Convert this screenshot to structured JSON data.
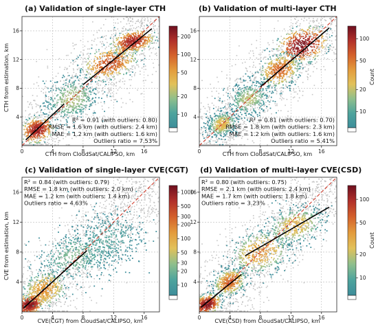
{
  "chart_data": [
    {
      "type": "heatmap",
      "title": "(a) Validation of single-layer CTH",
      "xlabel": "CTH from CloudSat/CALIPSO, km",
      "ylabel": "CTH from estimation, km",
      "xlim": [
        0,
        18
      ],
      "ylim": [
        0,
        18
      ],
      "x_ticks": [
        0,
        4,
        8,
        12,
        16
      ],
      "y_ticks": [
        4,
        8,
        12,
        16
      ],
      "grid": true,
      "stats_position": "bottom-right",
      "stats": [
        "R² = 0.91 (with outliers: 0.80)",
        "RMSE = 1.6 km (with outliers: 2.4 km)",
        "MAE = 1.2 km (with outliers: 1.6 km)",
        "Outliers ratio = 7.53%"
      ],
      "colorbar": {
        "ticks": [
          10,
          20,
          50,
          100,
          200
        ],
        "label": "",
        "min": 6,
        "max": 300
      },
      "one_to_one_line": true,
      "fit_segments": [
        {
          "x": [
            0.5,
            5.5
          ],
          "y": [
            0.8,
            5.8
          ]
        },
        {
          "x": [
            8,
            17
          ],
          "y": [
            8.5,
            16.3
          ]
        }
      ],
      "density_clusters": [
        {
          "x": 2.0,
          "y": 2.2,
          "sx": 0.9,
          "sy": 0.9,
          "peak": 220
        },
        {
          "x": 11.5,
          "y": 11.5,
          "sx": 1.6,
          "sy": 1.2,
          "peak": 120
        },
        {
          "x": 14.5,
          "y": 14.5,
          "sx": 1.2,
          "sy": 0.8,
          "peak": 200
        },
        {
          "x": 6.5,
          "y": 6.5,
          "sx": 1.8,
          "sy": 1.8,
          "peak": 25
        }
      ]
    },
    {
      "type": "heatmap",
      "title": "(b) Validation of multi-layer CTH",
      "xlabel": "CTH from CloudSat/CALIPSO, km",
      "ylabel": "",
      "xlim": [
        0,
        18
      ],
      "ylim": [
        0,
        18
      ],
      "x_ticks": [
        0,
        4,
        8,
        12,
        16
      ],
      "y_ticks": [
        4,
        8,
        12,
        16
      ],
      "grid": true,
      "stats_position": "bottom-right",
      "stats": [
        "R² = 0.81 (with outliers: 0.70)",
        "RMSE = 1.8 km (with outliers: 2.3 km)",
        "MAE = 1.2 km (with outliers: 1.6 km)",
        "Outliers ratio = 5.41%"
      ],
      "colorbar": {
        "ticks": [
          10,
          20,
          50,
          100
        ],
        "label": "Count",
        "min": 6,
        "max": 150
      },
      "one_to_one_line": true,
      "fit_segments": [
        {
          "x": [
            8,
            17
          ],
          "y": [
            8.2,
            16.4
          ]
        }
      ],
      "density_clusters": [
        {
          "x": 13.5,
          "y": 14.0,
          "sx": 1.5,
          "sy": 1.3,
          "peak": 140
        },
        {
          "x": 10.5,
          "y": 10.5,
          "sx": 1.3,
          "sy": 1.3,
          "peak": 60
        },
        {
          "x": 3.0,
          "y": 3.0,
          "sx": 1.0,
          "sy": 1.0,
          "peak": 30
        },
        {
          "x": 6.5,
          "y": 6.5,
          "sx": 1.5,
          "sy": 1.5,
          "peak": 20
        }
      ]
    },
    {
      "type": "heatmap",
      "title": "(c) Validation of single-layer CVE(CGT)",
      "xlabel": "CVE(CGT) from CloudSat/CALIPSO, km",
      "ylabel": "CVE from estimation, km",
      "xlim": [
        0,
        18
      ],
      "ylim": [
        0,
        18
      ],
      "x_ticks": [
        0,
        4,
        8,
        12,
        16
      ],
      "y_ticks": [
        4,
        8,
        12,
        16
      ],
      "grid": true,
      "stats_position": "top-left",
      "stats": [
        "R² = 0.84 (with outliers: 0.79)",
        "RMSE = 1.8 km (with outliers: 2.0 km)",
        "MAE = 1.2 km (with outliers: 1.4 km)",
        "Outliers ratio = 4.63%"
      ],
      "colorbar": {
        "ticks": [
          10,
          20,
          30,
          50,
          100,
          200,
          300,
          500,
          1000
        ],
        "label": "",
        "min": 6,
        "max": 1400
      },
      "one_to_one_line": true,
      "fit_segments": [
        {
          "x": [
            0.2,
            8.5
          ],
          "y": [
            0.5,
            8.2
          ]
        }
      ],
      "density_clusters": [
        {
          "x": 1.0,
          "y": 1.0,
          "sx": 0.7,
          "sy": 0.6,
          "peak": 1200
        },
        {
          "x": 3.0,
          "y": 3.0,
          "sx": 1.2,
          "sy": 1.2,
          "peak": 150
        },
        {
          "x": 7.0,
          "y": 7.5,
          "sx": 2.5,
          "sy": 2.0,
          "peak": 25
        },
        {
          "x": 11.0,
          "y": 9.5,
          "sx": 2.5,
          "sy": 2.5,
          "peak": 15
        }
      ]
    },
    {
      "type": "heatmap",
      "title": "(d) Validation of multi-layer CVE(CSD)",
      "xlabel": "CVE(CSD) from CloudSat/CALIPSO, km",
      "ylabel": "",
      "xlim": [
        0,
        18
      ],
      "ylim": [
        0,
        18
      ],
      "x_ticks": [
        0,
        4,
        8,
        12,
        16
      ],
      "y_ticks": [
        4,
        8,
        12,
        16
      ],
      "grid": true,
      "stats_position": "top-left",
      "stats": [
        "R² = 0.80 (with outliers: 0.75)",
        "RMSE = 2.1 km (with outliers: 2.4 km)",
        "MAE = 1.7 km (with outliers: 1.8 km)",
        "Outliers ratio = 3.23%"
      ],
      "colorbar": {
        "ticks": [
          10,
          20,
          50,
          100
        ],
        "label": "Count",
        "min": 6,
        "max": 150
      },
      "one_to_one_line": true,
      "fit_segments": [
        {
          "x": [
            0.2,
            5.5
          ],
          "y": [
            0.6,
            5.0
          ]
        },
        {
          "x": [
            6,
            17
          ],
          "y": [
            7.5,
            14.0
          ]
        }
      ],
      "density_clusters": [
        {
          "x": 1.0,
          "y": 1.0,
          "sx": 0.8,
          "sy": 0.7,
          "peak": 140
        },
        {
          "x": 8.0,
          "y": 8.0,
          "sx": 2.0,
          "sy": 1.7,
          "peak": 40
        },
        {
          "x": 12.5,
          "y": 11.5,
          "sx": 2.0,
          "sy": 1.5,
          "peak": 30
        },
        {
          "x": 4.0,
          "y": 4.0,
          "sx": 1.0,
          "sy": 1.0,
          "peak": 60
        }
      ]
    }
  ],
  "colors": {
    "colormap": [
      "#3d8d9a",
      "#4ea49d",
      "#8fbf8c",
      "#e2c15a",
      "#e39b3c",
      "#d4612b",
      "#b1302a",
      "#6e0f1f"
    ],
    "low_scatter": "#c4c4c4",
    "fit_line": "#000000",
    "one_to_one": "#d03a2a"
  }
}
